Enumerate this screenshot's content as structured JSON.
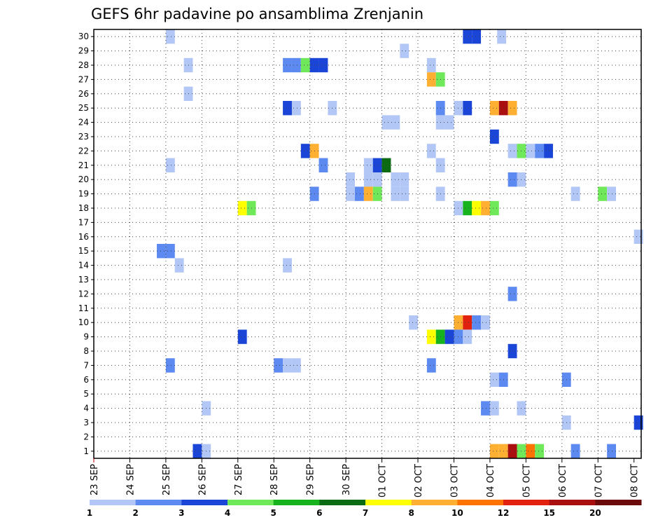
{
  "chart_data": {
    "type": "heatmap",
    "title": "GEFS 6hr padavine po ansamblima Zrenjanin",
    "xlabel": "",
    "ylabel": "",
    "x_range": [
      0,
      15.2
    ],
    "y_range": [
      0.5,
      30.5
    ],
    "x_tick_labels": [
      "23 SEP",
      "24 SEP",
      "25 SEP",
      "26 SEP",
      "27 SEP",
      "28 SEP",
      "29 SEP",
      "30 SEP",
      "01 OCT",
      "02 OCT",
      "03 OCT",
      "04 OCT",
      "05 OCT",
      "06 OCT",
      "07 OCT",
      "08 OCT"
    ],
    "y_tick_labels": [
      "1",
      "2",
      "3",
      "4",
      "5",
      "6",
      "7",
      "8",
      "9",
      "10",
      "11",
      "12",
      "13",
      "14",
      "15",
      "16",
      "17",
      "18",
      "19",
      "20",
      "21",
      "22",
      "23",
      "24",
      "25",
      "26",
      "27",
      "28",
      "29",
      "30"
    ],
    "grid": true,
    "legend": {
      "position": "bottom",
      "colors": [
        "#b3c7f7",
        "#5d8af0",
        "#1a45d6",
        "#6fe85a",
        "#17b31e",
        "#0a6b12",
        "#ffff00",
        "#ffb033",
        "#ff7400",
        "#e0220f",
        "#a90f0f",
        "#6b0a0a"
      ],
      "labels": [
        "1",
        "2",
        "3",
        "4",
        "5",
        "6",
        "7",
        "8",
        "10",
        "12",
        "15",
        "20"
      ]
    },
    "cells": [
      {
        "m": 30,
        "t": 2.0,
        "c": 1
      },
      {
        "m": 30,
        "t": 10.25,
        "c": 3
      },
      {
        "m": 30,
        "t": 10.5,
        "c": 3
      },
      {
        "m": 30,
        "t": 11.2,
        "c": 1
      },
      {
        "m": 29,
        "t": 8.5,
        "c": 1
      },
      {
        "m": 28,
        "t": 2.5,
        "c": 1
      },
      {
        "m": 28,
        "t": 5.25,
        "c": 2
      },
      {
        "m": 28,
        "t": 5.5,
        "c": 2
      },
      {
        "m": 28,
        "t": 5.75,
        "c": 4
      },
      {
        "m": 28,
        "t": 6.0,
        "c": 3
      },
      {
        "m": 28,
        "t": 6.25,
        "c": 3
      },
      {
        "m": 28,
        "t": 9.25,
        "c": 1
      },
      {
        "m": 27,
        "t": 9.25,
        "c": 8
      },
      {
        "m": 27,
        "t": 9.5,
        "c": 4
      },
      {
        "m": 26,
        "t": 2.5,
        "c": 1
      },
      {
        "m": 25,
        "t": 5.25,
        "c": 3
      },
      {
        "m": 25,
        "t": 5.5,
        "c": 1
      },
      {
        "m": 25,
        "t": 6.5,
        "c": 1
      },
      {
        "m": 25,
        "t": 9.5,
        "c": 2
      },
      {
        "m": 25,
        "t": 10.0,
        "c": 1
      },
      {
        "m": 25,
        "t": 10.25,
        "c": 3
      },
      {
        "m": 25,
        "t": 11.0,
        "c": 8
      },
      {
        "m": 25,
        "t": 11.25,
        "c": 11
      },
      {
        "m": 25,
        "t": 11.5,
        "c": 8
      },
      {
        "m": 24,
        "t": 8.0,
        "c": 1
      },
      {
        "m": 24,
        "t": 8.25,
        "c": 1
      },
      {
        "m": 24,
        "t": 9.5,
        "c": 1
      },
      {
        "m": 24,
        "t": 9.75,
        "c": 1
      },
      {
        "m": 23,
        "t": 11.0,
        "c": 3
      },
      {
        "m": 22,
        "t": 5.75,
        "c": 3
      },
      {
        "m": 22,
        "t": 6.0,
        "c": 8
      },
      {
        "m": 22,
        "t": 9.25,
        "c": 1
      },
      {
        "m": 22,
        "t": 11.5,
        "c": 1
      },
      {
        "m": 22,
        "t": 11.75,
        "c": 4
      },
      {
        "m": 22,
        "t": 12.0,
        "c": 1
      },
      {
        "m": 22,
        "t": 12.25,
        "c": 2
      },
      {
        "m": 22,
        "t": 12.5,
        "c": 3
      },
      {
        "m": 21,
        "t": 2.0,
        "c": 1
      },
      {
        "m": 21,
        "t": 6.25,
        "c": 2
      },
      {
        "m": 21,
        "t": 7.5,
        "c": 1
      },
      {
        "m": 21,
        "t": 7.75,
        "c": 3
      },
      {
        "m": 21,
        "t": 8.0,
        "c": 6
      },
      {
        "m": 21,
        "t": 9.5,
        "c": 1
      },
      {
        "m": 20,
        "t": 7.0,
        "c": 1
      },
      {
        "m": 20,
        "t": 7.5,
        "c": 1
      },
      {
        "m": 20,
        "t": 7.75,
        "c": 1
      },
      {
        "m": 20,
        "t": 8.25,
        "c": 1
      },
      {
        "m": 20,
        "t": 8.5,
        "c": 1
      },
      {
        "m": 20,
        "t": 11.5,
        "c": 2
      },
      {
        "m": 20,
        "t": 11.75,
        "c": 1
      },
      {
        "m": 19,
        "t": 6.0,
        "c": 2
      },
      {
        "m": 19,
        "t": 7.0,
        "c": 1
      },
      {
        "m": 19,
        "t": 7.25,
        "c": 2
      },
      {
        "m": 19,
        "t": 7.5,
        "c": 8
      },
      {
        "m": 19,
        "t": 7.75,
        "c": 4
      },
      {
        "m": 19,
        "t": 8.25,
        "c": 1
      },
      {
        "m": 19,
        "t": 8.5,
        "c": 1
      },
      {
        "m": 19,
        "t": 9.5,
        "c": 1
      },
      {
        "m": 19,
        "t": 13.25,
        "c": 1
      },
      {
        "m": 19,
        "t": 14.0,
        "c": 4
      },
      {
        "m": 19,
        "t": 14.25,
        "c": 1
      },
      {
        "m": 18,
        "t": 4.0,
        "c": 7
      },
      {
        "m": 18,
        "t": 4.25,
        "c": 4
      },
      {
        "m": 18,
        "t": 10.0,
        "c": 1
      },
      {
        "m": 18,
        "t": 10.25,
        "c": 5
      },
      {
        "m": 18,
        "t": 10.5,
        "c": 7
      },
      {
        "m": 18,
        "t": 10.75,
        "c": 8
      },
      {
        "m": 18,
        "t": 11.0,
        "c": 4
      },
      {
        "m": 16,
        "t": 15.0,
        "c": 1
      },
      {
        "m": 15,
        "t": 1.75,
        "c": 2
      },
      {
        "m": 15,
        "t": 2.0,
        "c": 2
      },
      {
        "m": 14,
        "t": 2.25,
        "c": 1
      },
      {
        "m": 14,
        "t": 5.25,
        "c": 1
      },
      {
        "m": 12,
        "t": 11.5,
        "c": 2
      },
      {
        "m": 10,
        "t": 8.75,
        "c": 1
      },
      {
        "m": 10,
        "t": 10.0,
        "c": 8
      },
      {
        "m": 10,
        "t": 10.25,
        "c": 10
      },
      {
        "m": 10,
        "t": 10.5,
        "c": 2
      },
      {
        "m": 10,
        "t": 10.75,
        "c": 1
      },
      {
        "m": 9,
        "t": 4.0,
        "c": 3
      },
      {
        "m": 9,
        "t": 9.25,
        "c": 7
      },
      {
        "m": 9,
        "t": 9.5,
        "c": 5
      },
      {
        "m": 9,
        "t": 9.75,
        "c": 3
      },
      {
        "m": 9,
        "t": 10.0,
        "c": 2
      },
      {
        "m": 9,
        "t": 10.25,
        "c": 1
      },
      {
        "m": 8,
        "t": 11.5,
        "c": 3
      },
      {
        "m": 7,
        "t": 2.0,
        "c": 2
      },
      {
        "m": 7,
        "t": 5.0,
        "c": 2
      },
      {
        "m": 7,
        "t": 5.25,
        "c": 1
      },
      {
        "m": 7,
        "t": 5.5,
        "c": 1
      },
      {
        "m": 7,
        "t": 9.25,
        "c": 2
      },
      {
        "m": 6,
        "t": 11.0,
        "c": 1
      },
      {
        "m": 6,
        "t": 11.25,
        "c": 2
      },
      {
        "m": 6,
        "t": 13.0,
        "c": 2
      },
      {
        "m": 4,
        "t": 3.0,
        "c": 1
      },
      {
        "m": 4,
        "t": 10.75,
        "c": 2
      },
      {
        "m": 4,
        "t": 11.0,
        "c": 1
      },
      {
        "m": 4,
        "t": 11.75,
        "c": 1
      },
      {
        "m": 3,
        "t": 13.0,
        "c": 1
      },
      {
        "m": 3,
        "t": 15.0,
        "c": 3
      },
      {
        "m": 1,
        "t": 2.75,
        "c": 3
      },
      {
        "m": 1,
        "t": 3.0,
        "c": 1
      },
      {
        "m": 1,
        "t": 11.0,
        "c": 8
      },
      {
        "m": 1,
        "t": 11.25,
        "c": 8
      },
      {
        "m": 1,
        "t": 11.5,
        "c": 11
      },
      {
        "m": 1,
        "t": 11.75,
        "c": 4
      },
      {
        "m": 1,
        "t": 12.0,
        "c": 9
      },
      {
        "m": 1,
        "t": 12.25,
        "c": 4
      },
      {
        "m": 1,
        "t": 13.25,
        "c": 2
      },
      {
        "m": 1,
        "t": 14.25,
        "c": 2
      }
    ]
  }
}
